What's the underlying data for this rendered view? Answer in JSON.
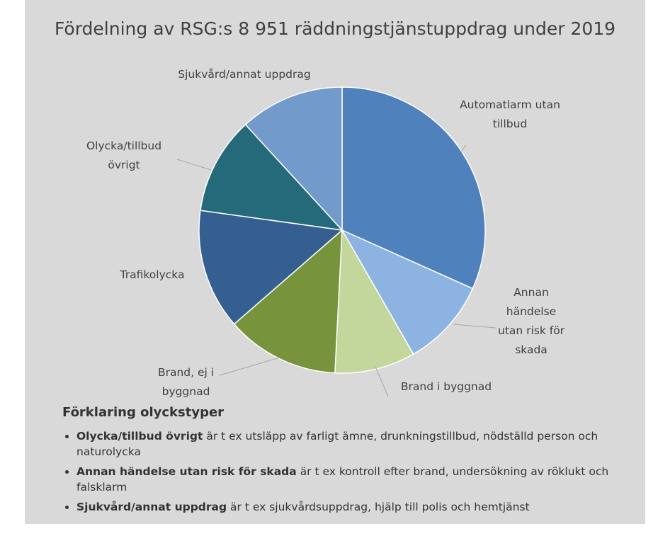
{
  "chart_data": {
    "type": "pie",
    "title": "Fördelning av RSG:s 8 951 räddningstjänstuppdrag under 2019",
    "categories": [
      "Automatlarm utan tillbud",
      "Annan händelse utan risk för skada",
      "Brand i byggnad",
      "Brand, ej i byggnad",
      "Trafikolycka",
      "Olycka/tillbud övrigt",
      "Sjukvård/annat uppdrag"
    ],
    "values": [
      31.7,
      10.0,
      9.1,
      12.8,
      13.6,
      11.0,
      11.8
    ],
    "colors": [
      "#4f81bd",
      "#8db3e2",
      "#c3d69b",
      "#77933c",
      "#365f91",
      "#256a7a",
      "#729aca"
    ]
  },
  "explanation": {
    "title": "Förklaring olyckstyper",
    "items": [
      {
        "term": "Olycka/tillbud övrigt",
        "text": "är t ex utsläpp av farligt ämne, drunkningstillbud, nödställd person och naturolycka"
      },
      {
        "term": "Annan händelse utan risk för skada",
        "text": "är t ex kontroll efter brand, undersökning av röklukt och falsklarm"
      },
      {
        "term": "Sjukvård/annat uppdrag",
        "text": "är t ex sjukvårdsuppdrag, hjälp till polis och hemtjänst"
      }
    ]
  }
}
